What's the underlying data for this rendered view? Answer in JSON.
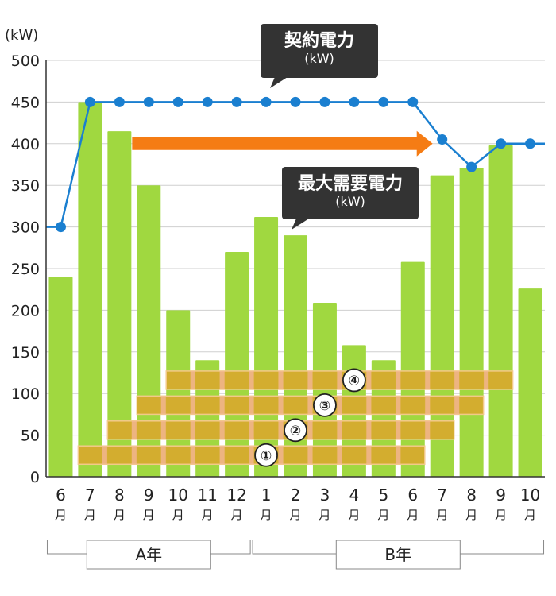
{
  "chart_data": {
    "type": "bar",
    "y_unit": "(kW)",
    "ylim": [
      0,
      500
    ],
    "yticks": [
      0,
      50,
      100,
      150,
      200,
      250,
      300,
      350,
      400,
      450,
      500
    ],
    "categories": [
      "6",
      "7",
      "8",
      "9",
      "10",
      "11",
      "12",
      "1",
      "2",
      "3",
      "4",
      "5",
      "6",
      "7",
      "8",
      "9",
      "10"
    ],
    "category_suffix": "月",
    "grid": true,
    "series": [
      {
        "name": "最大需要電力",
        "type": "bar",
        "color": "#a0d840",
        "values": [
          240,
          450,
          415,
          350,
          200,
          140,
          270,
          312,
          290,
          209,
          158,
          140,
          258,
          362,
          371,
          398,
          226
        ]
      },
      {
        "name": "契約電力",
        "type": "line",
        "color": "#1a7fd0",
        "values": [
          300,
          450,
          450,
          450,
          450,
          450,
          450,
          450,
          450,
          450,
          450,
          450,
          450,
          405,
          372,
          400,
          400
        ]
      }
    ],
    "callouts": {
      "contract": {
        "title": "契約電力",
        "unit": "(kW)"
      },
      "peak": {
        "title": "最大需要電力",
        "unit": "(kW)"
      }
    },
    "groups": [
      {
        "label": "A年",
        "from": 0,
        "to": 6
      },
      {
        "label": "B年",
        "from": 7,
        "to": 16
      }
    ],
    "bands": [
      {
        "label": "①",
        "from": 1,
        "to": 12,
        "y_min": 15,
        "y_max": 37
      },
      {
        "label": "②",
        "from": 2,
        "to": 13,
        "y_min": 45,
        "y_max": 67
      },
      {
        "label": "③",
        "from": 3,
        "to": 14,
        "y_min": 75,
        "y_max": 97
      },
      {
        "label": "④",
        "from": 4,
        "to": 15,
        "y_min": 105,
        "y_max": 127
      }
    ],
    "arrow": {
      "from": 2,
      "to": 13,
      "y": 400,
      "color": "#f57c14"
    }
  }
}
